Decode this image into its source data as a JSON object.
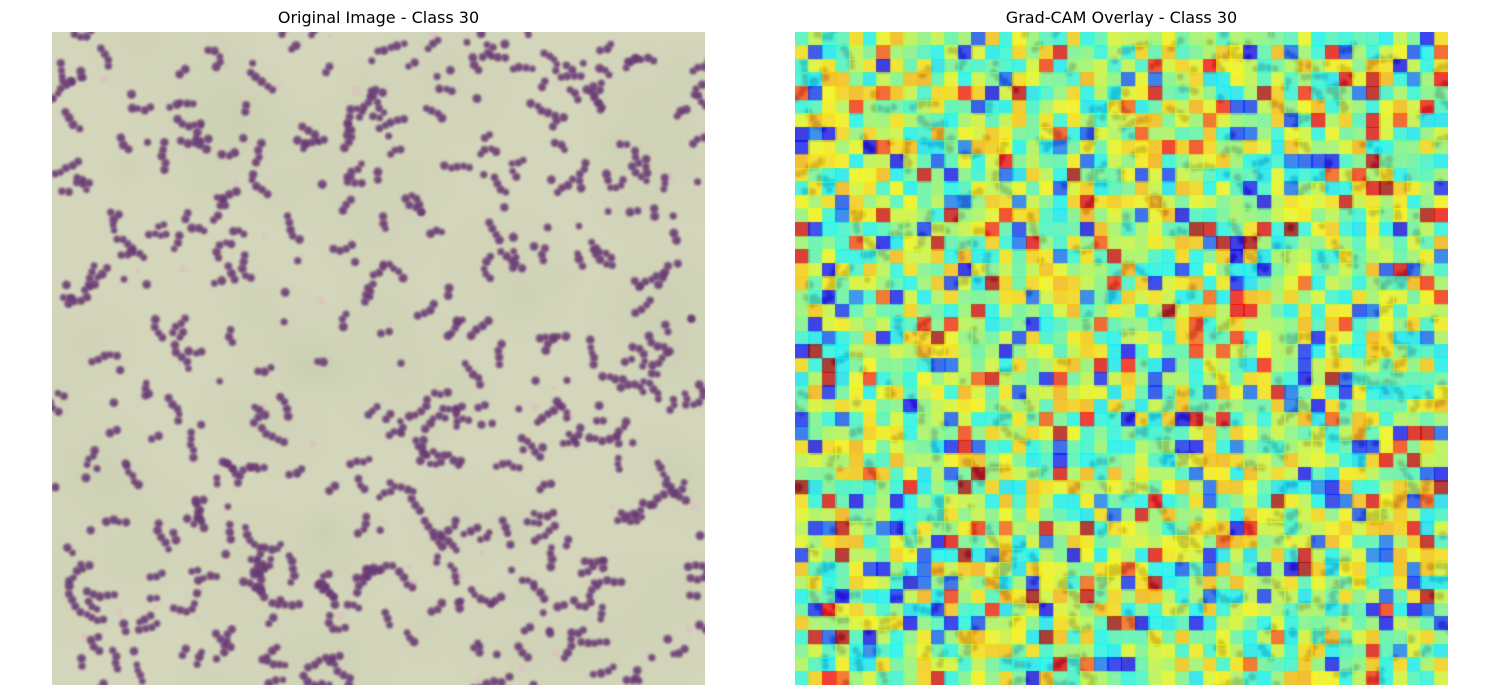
{
  "panels": {
    "left": {
      "title": "Original Image - Class 30",
      "content": "microscopy-image",
      "colors": {
        "background": "#d4d6bb",
        "cell": "#6e3f78",
        "cell_dark": "#5a2f66",
        "stain_blush": "#e0b8c0"
      }
    },
    "right": {
      "title": "Grad-CAM Overlay - Class 30",
      "content": "gradcam-heatmap-overlay",
      "colormap": "jet",
      "overlay_alpha": 0.5
    }
  }
}
